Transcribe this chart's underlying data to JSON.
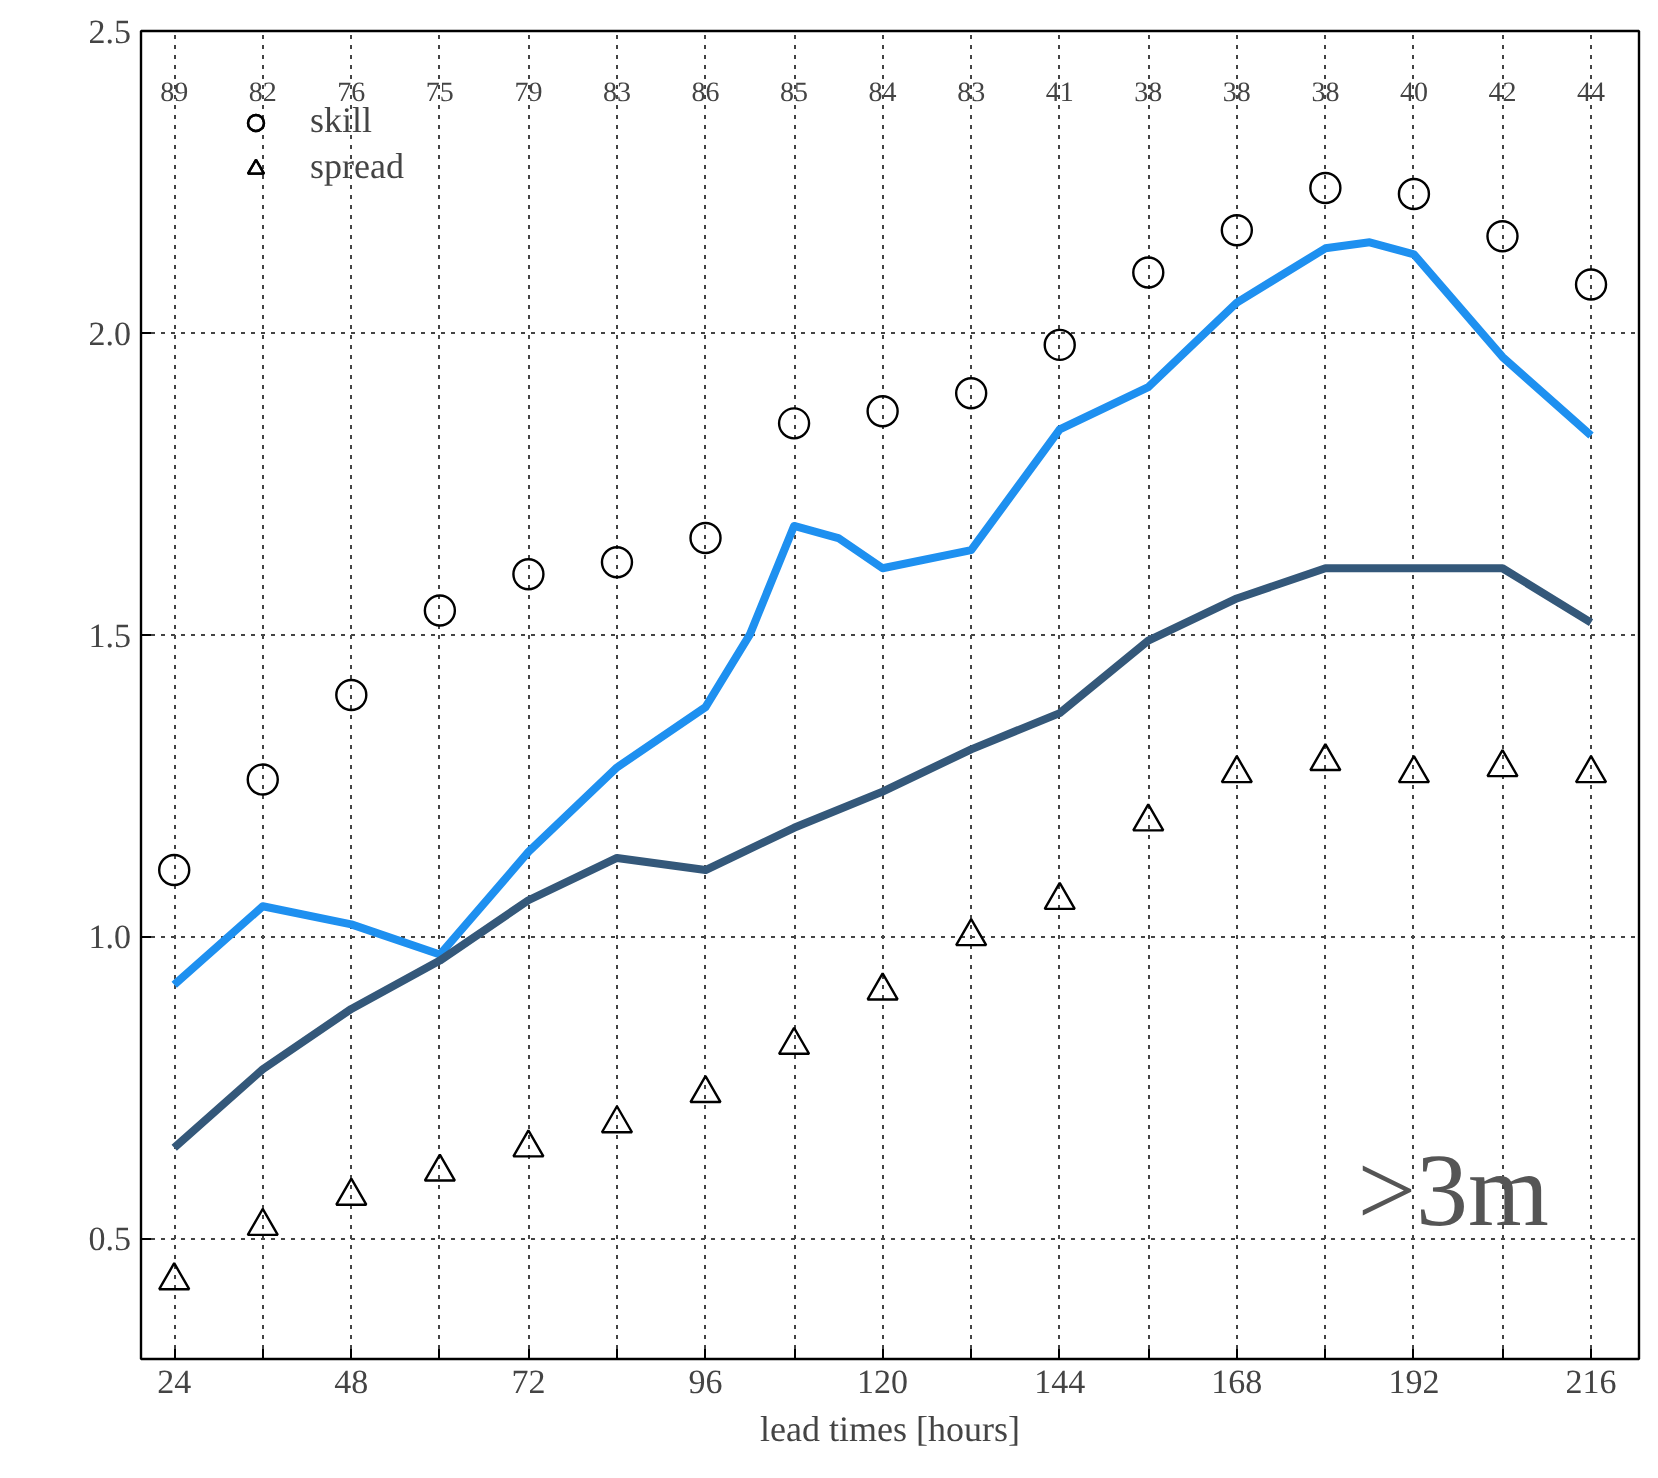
{
  "chart_data": {
    "type": "scatter",
    "xlabel": "lead times [hours]",
    "x": [
      24,
      36,
      48,
      60,
      72,
      84,
      96,
      108,
      120,
      132,
      144,
      156,
      168,
      180,
      192,
      204,
      216
    ],
    "series": [
      {
        "name": "skill",
        "marker": "circle",
        "color": "#000000",
        "values": [
          1.11,
          1.26,
          1.4,
          1.54,
          1.6,
          1.62,
          1.66,
          1.85,
          1.87,
          1.9,
          1.98,
          2.1,
          2.17,
          2.24,
          2.23,
          2.16,
          2.08
        ]
      },
      {
        "name": "spread",
        "marker": "triangle",
        "color": "#000000",
        "values": [
          0.43,
          0.52,
          0.57,
          0.61,
          0.65,
          0.69,
          0.74,
          0.82,
          0.91,
          1.0,
          1.06,
          1.19,
          1.27,
          1.29,
          1.27,
          1.28,
          1.27
        ]
      },
      {
        "type": "line",
        "color": "#1e90f0",
        "x": [
          24,
          36,
          48,
          60,
          72,
          84,
          96,
          102,
          108,
          114,
          120,
          132,
          144,
          156,
          168,
          180,
          186,
          192,
          204,
          216
        ],
        "values": [
          0.92,
          1.05,
          1.02,
          0.97,
          1.14,
          1.28,
          1.38,
          1.5,
          1.68,
          1.66,
          1.61,
          1.64,
          1.84,
          1.91,
          2.05,
          2.14,
          2.15,
          2.13,
          1.96,
          1.83
        ]
      },
      {
        "type": "line",
        "color": "#34587a",
        "values": [
          0.65,
          0.78,
          0.88,
          0.96,
          1.06,
          1.13,
          1.11,
          1.18,
          1.24,
          1.31,
          1.37,
          1.49,
          1.56,
          1.61,
          1.61,
          1.61,
          1.52
        ]
      }
    ],
    "xlim": [
      19.5,
      222.5
    ],
    "xticks": [
      24,
      {
        "value": 36,
        "label": null
      },
      48,
      {
        "value": 60,
        "label": null
      },
      72,
      {
        "value": 84,
        "label": null
      },
      96,
      {
        "value": 108,
        "label": null
      },
      120,
      {
        "value": 132,
        "label": null
      },
      144,
      {
        "value": 156,
        "label": null
      },
      168,
      {
        "value": 180,
        "label": null
      },
      192,
      {
        "value": 204,
        "label": null
      },
      216
    ],
    "ylim": [
      0.3,
      2.5
    ],
    "yticks": [
      {
        "value": 0.5,
        "label": "0.5"
      },
      {
        "value": 1.0,
        "label": "1.0"
      },
      {
        "value": 1.5,
        "label": "1.5"
      },
      {
        "value": 2.0,
        "label": "2.0"
      },
      {
        "value": 2.5,
        "label": "2.5"
      }
    ],
    "grid": true,
    "legend": "top left",
    "line_style": "solid",
    "annotations": [
      "89",
      "82",
      "76",
      "75",
      "79",
      "83",
      "86",
      "85",
      "84",
      "83",
      "41",
      "38",
      "38",
      "38",
      "40",
      "42",
      "44",
      ">3m"
    ]
  }
}
